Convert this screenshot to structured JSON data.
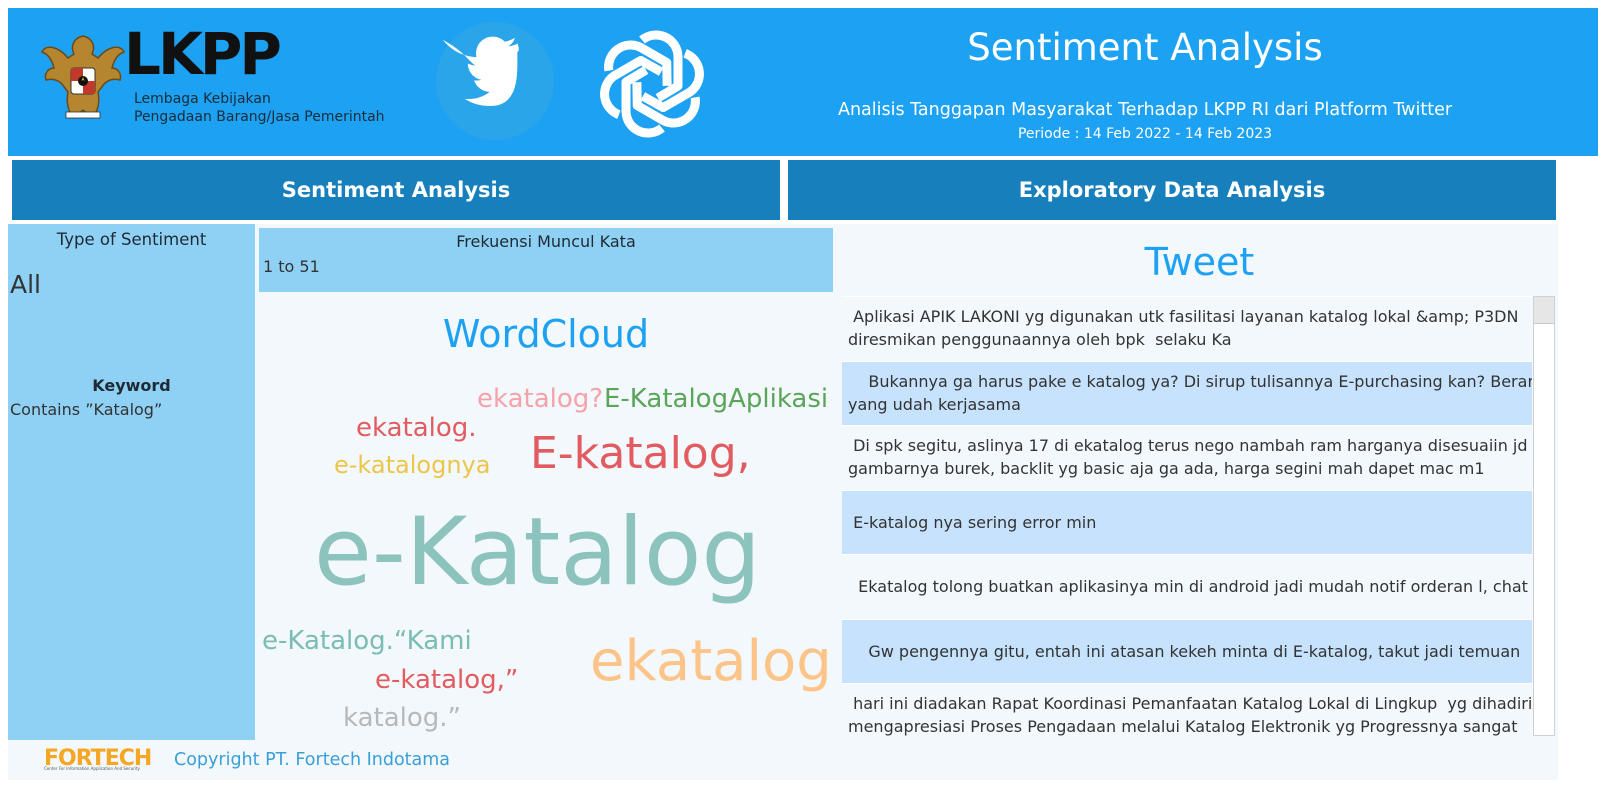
{
  "header": {
    "logo_name": "LKPP",
    "logo_subtitle_line1": "Lembaga Kebijakan",
    "logo_subtitle_line2": "Pengadaan Barang/Jasa Pemerintah",
    "title": "Sentiment Analysis",
    "subtitle": "Analisis Tanggapan Masyarakat Terhadap LKPP RI dari Platform Twitter",
    "period": "Periode : 14 Feb 2022 - 14 Feb 2023",
    "icons": [
      "garuda-emblem-icon",
      "twitter-bird-icon",
      "openai-logo-icon"
    ],
    "brand_color": "#1da1f2"
  },
  "sections": {
    "left": "Sentiment Analysis",
    "right": "Exploratory Data Analysis"
  },
  "filters": {
    "sentiment_label": "Type of Sentiment",
    "sentiment_value": "All",
    "keyword_label": "Keyword",
    "keyword_value": "Contains ”Katalog”"
  },
  "wordcloud": {
    "freq_label": "Frekuensi Muncul Kata",
    "freq_range": "1 to 51",
    "title": "WordCloud",
    "words": [
      {
        "text": "e-Katalog",
        "color": "#8dc3bd"
      },
      {
        "text": "ekatalog",
        "color": "#fdc489"
      },
      {
        "text": "E-katalog,",
        "color": "#e15b60"
      },
      {
        "text": "E-KatalogAplikasi",
        "color": "#5aa55a"
      },
      {
        "text": "ekatalog?",
        "color": "#f6a2aa"
      },
      {
        "text": "ekatalog.",
        "color": "#e15b60"
      },
      {
        "text": "e-katalognya",
        "color": "#edc54a"
      },
      {
        "text": "e-Katalog.“Kami",
        "color": "#7bbcb3"
      },
      {
        "text": "e-katalog,”",
        "color": "#e15b60"
      },
      {
        "text": "katalog.”",
        "color": "#b8b8b8"
      }
    ]
  },
  "tweets": {
    "title": "Tweet",
    "rows": [
      {
        "text": " Aplikasi APIK LAKONI yg digunakan utk fasilitasi layanan katalog lokal &amp; P3DN\ndiresmikan penggunaannya oleh bpk  selaku Ka"
      },
      {
        "text": "    Bukannya ga harus pake e katalog ya? Di sirup tulisannya E-purchasing kan? Berarti\nyang udah kerjasama"
      },
      {
        "text": " Di spk segitu, aslinya 17 di ekatalog terus nego nambah ram harganya disesuaiin jd\ngambarnya burek, backlit yg basic aja ga ada, harga segini mah dapet mac m1"
      },
      {
        "text": " E-katalog nya sering error min"
      },
      {
        "text": "  Ekatalog tolong buatkan aplikasinya min di android jadi mudah notif orderan l, chat"
      },
      {
        "text": "    Gw pengennya gitu, entah ini atasan kekeh minta di E-katalog, takut jadi temuan"
      },
      {
        "text": " hari ini diadakan Rapat Koordinasi Pemanfaatan Katalog Lokal di Lingkup  yg dihadiri\nmengapresiasi Proses Pengadaan melalui Katalog Elektronik yg Progressnya sangat"
      }
    ]
  },
  "footer": {
    "logo_text": "FORTECH",
    "logo_tagline": "Center For Information Application And Security",
    "copyright": "Copyright PT. Fortech Indotama"
  }
}
